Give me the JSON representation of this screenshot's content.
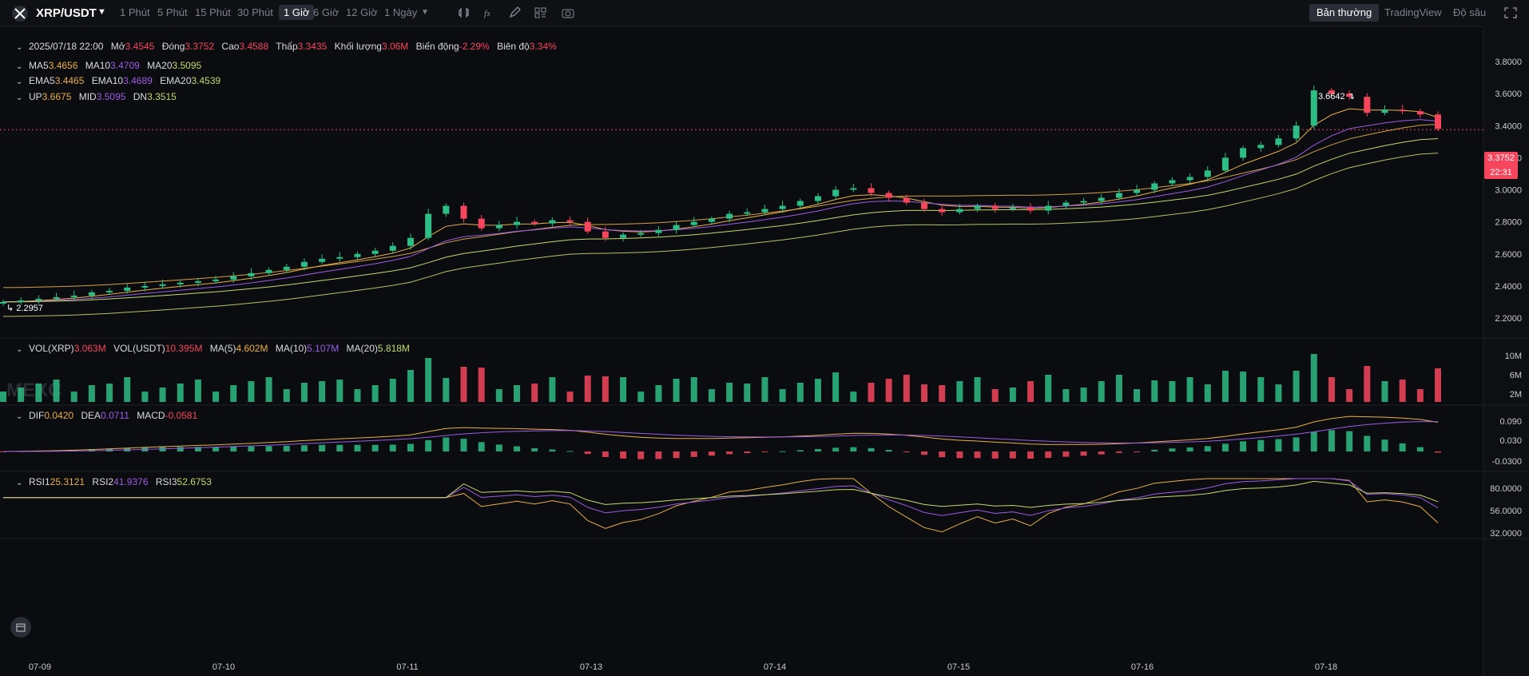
{
  "header": {
    "pair": "XRP/USDT",
    "timeframes": [
      "1 Phút",
      "5 Phút",
      "15 Phút",
      "30 Phút",
      "1 Giờ",
      "6 Giờ",
      "12 Giờ",
      "1 Ngày"
    ],
    "active_timeframe": "1 Giờ",
    "views": [
      "Bản thường",
      "TradingView",
      "Độ sâu"
    ],
    "active_view": "Bản thường"
  },
  "ohlc": {
    "date": "2025/07/18 22:00",
    "open_label": "Mở",
    "open": "3.4545",
    "close_label": "Đóng",
    "close": "3.3752",
    "high_label": "Cao",
    "high": "3.4588",
    "low_label": "Thấp",
    "low": "3.3435",
    "volume_label": "Khối lượng",
    "volume": "3.06M",
    "change_label": "Biến động",
    "change": "-2.29%",
    "amplitude_label": "Biên độ",
    "amplitude": "3.34%"
  },
  "ma": {
    "ma5_label": "MA5",
    "ma5": "3.4656",
    "ma10_label": "MA10",
    "ma10": "3.4709",
    "ma20_label": "MA20",
    "ma20": "3.5095"
  },
  "ema": {
    "ema5_label": "EMA5",
    "ema5": "3.4465",
    "ema10_label": "EMA10",
    "ema10": "3.4689",
    "ema20_label": "EMA20",
    "ema20": "3.4539"
  },
  "boll": {
    "up_label": "UP",
    "up": "3.6675",
    "mid_label": "MID",
    "mid": "3.5095",
    "dn_label": "DN",
    "dn": "3.3515"
  },
  "vol": {
    "xrp_label": "VOL(XRP)",
    "xrp": "3.063M",
    "usdt_label": "VOL(USDT)",
    "usdt": "10.395M",
    "ma5_label": "MA(5)",
    "ma5": "4.602M",
    "ma10_label": "MA(10)",
    "ma10": "5.107M",
    "ma20_label": "MA(20)",
    "ma20": "5.818M"
  },
  "macd": {
    "dif_label": "DIF",
    "dif": "0.0420",
    "dea_label": "DEA",
    "dea": "0.0711",
    "macd_label": "MACD",
    "macd": "-0.0581"
  },
  "rsi": {
    "rsi1_label": "RSI1",
    "rsi1": "25.3121",
    "rsi2_label": "RSI2",
    "rsi2": "41.9376",
    "rsi3_label": "RSI3",
    "rsi3": "52.6753"
  },
  "price_tag": {
    "price": "3.3752",
    "countdown": "22:31"
  },
  "high_marker": "3.6642",
  "low_marker": "2.2957",
  "watermark": "MEXC",
  "colors": {
    "up": "#2ebd85",
    "down": "#f6465d",
    "ma5": "#e8b04a",
    "ma10": "#9b5de5",
    "ma20": "#c5d86d",
    "boll": "#e8b04a",
    "bg": "#0b0c0f"
  },
  "chart_data": {
    "type": "candlestick",
    "x_ticks": [
      "07-09",
      "07-10",
      "07-11",
      "07-13",
      "07-14",
      "07-15",
      "07-16",
      "07-18"
    ],
    "price_ticks": [
      "3.8000",
      "3.6000",
      "3.4000",
      "3.2000",
      "3.0000",
      "2.8000",
      "2.6000",
      "2.4000",
      "2.2000"
    ],
    "vol_ticks": [
      "10M",
      "6M",
      "2M"
    ],
    "macd_ticks": [
      "0.090",
      "0.030",
      "-0.0300"
    ],
    "rsi_ticks": [
      "80.0000",
      "56.0000",
      "32.0000"
    ],
    "closes": [
      2.3,
      2.31,
      2.32,
      2.33,
      2.34,
      2.36,
      2.37,
      2.39,
      2.4,
      2.41,
      2.42,
      2.43,
      2.44,
      2.46,
      2.48,
      2.5,
      2.52,
      2.55,
      2.57,
      2.58,
      2.6,
      2.62,
      2.65,
      2.7,
      2.85,
      2.9,
      2.82,
      2.76,
      2.78,
      2.8,
      2.79,
      2.81,
      2.8,
      2.74,
      2.7,
      2.72,
      2.73,
      2.75,
      2.78,
      2.8,
      2.82,
      2.85,
      2.86,
      2.88,
      2.9,
      2.93,
      2.96,
      3.0,
      3.01,
      2.98,
      2.95,
      2.92,
      2.88,
      2.86,
      2.88,
      2.9,
      2.88,
      2.89,
      2.87,
      2.9,
      2.92,
      2.93,
      2.95,
      2.98,
      3.0,
      3.04,
      3.06,
      3.08,
      3.12,
      3.2,
      3.26,
      3.28,
      3.32,
      3.4,
      3.62,
      3.6,
      3.58,
      3.48,
      3.5,
      3.49,
      3.47,
      3.38
    ]
  }
}
